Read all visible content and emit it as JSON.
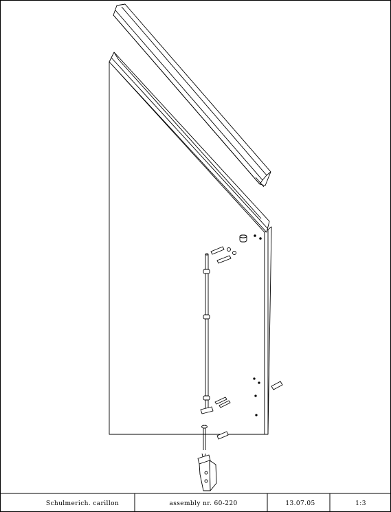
{
  "title_block": {
    "project": "Schulmerich. carillon",
    "assembly": "assembly nr. 60-220",
    "date": "13.07.05",
    "scale": "1:3"
  }
}
